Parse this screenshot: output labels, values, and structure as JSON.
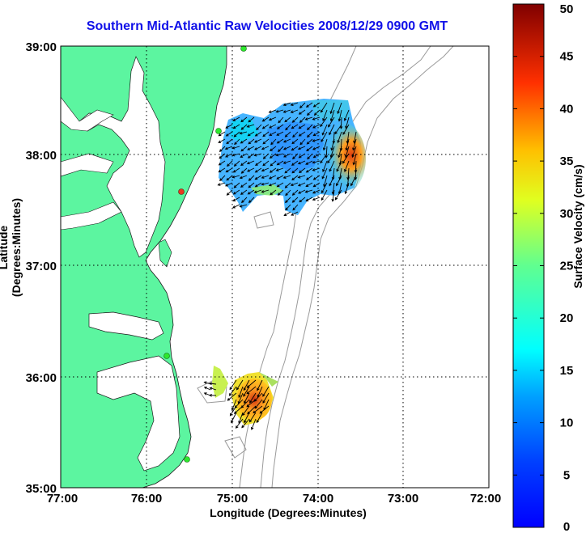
{
  "title": "Southern Mid-Atlantic Raw Velocities 2008/12/29 0900 GMT",
  "xlabel": "Longitude (Degrees:Minutes)",
  "ylabel": "Latitude (Degrees:Minutes)",
  "colorbar": {
    "label": "Surface Velocity (cm/s)",
    "ticks": [
      "0",
      "5",
      "10",
      "15",
      "20",
      "25",
      "30",
      "35",
      "40",
      "45",
      "50"
    ],
    "range": [
      0,
      50
    ],
    "colormap": "jet"
  },
  "map": {
    "x_ticks": [
      "77:00",
      "76:00",
      "75:00",
      "74:00",
      "73:00",
      "72:00"
    ],
    "y_ticks": [
      "39:00",
      "38:00",
      "37:00",
      "36:00",
      "35:00"
    ],
    "lon_range": [
      -77,
      -72
    ],
    "lat_range": [
      35,
      39
    ],
    "grid": "dotted",
    "land_color": "#5cf5a0",
    "bathymetry_color": "#9a9a9a",
    "station_color": "#2ee82e",
    "station_alert_color": "#e83a1e",
    "arrow_color": "#000000"
  }
}
